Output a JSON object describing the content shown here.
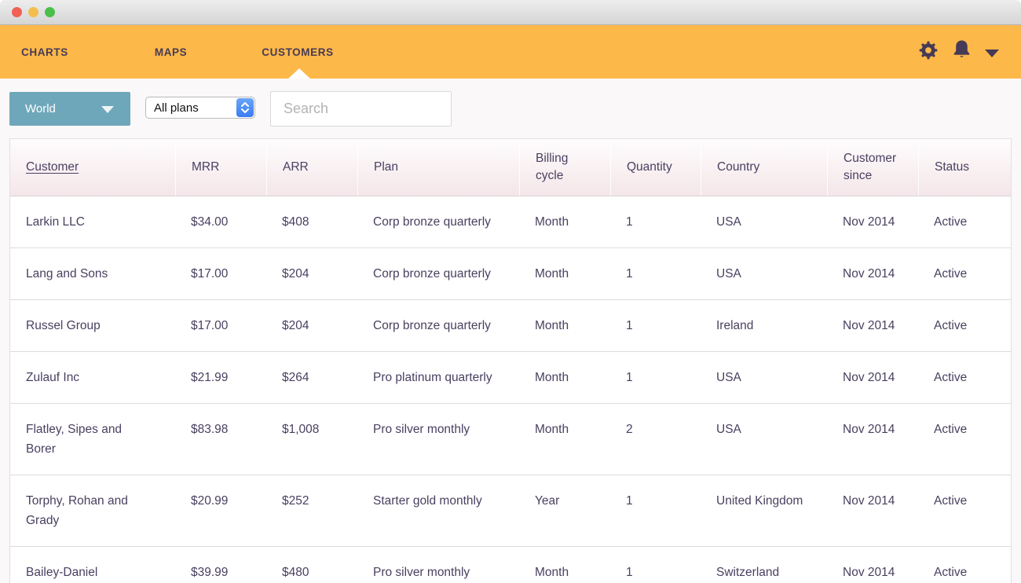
{
  "nav": {
    "tabs": [
      {
        "label": "CHARTS",
        "active": false
      },
      {
        "label": "MAPS",
        "active": false
      },
      {
        "label": "CUSTOMERS",
        "active": true
      }
    ]
  },
  "toolbar": {
    "region_dropdown": {
      "value": "World"
    },
    "plan_select": {
      "value": "All plans"
    },
    "search": {
      "placeholder": "Search"
    }
  },
  "table": {
    "columns": [
      {
        "key": "customer",
        "label": "Customer",
        "sorted": true
      },
      {
        "key": "mrr",
        "label": "MRR",
        "sorted": false
      },
      {
        "key": "arr",
        "label": "ARR",
        "sorted": false
      },
      {
        "key": "plan",
        "label": "Plan",
        "sorted": false
      },
      {
        "key": "billing_cycle",
        "label": "Billing cycle",
        "sorted": false
      },
      {
        "key": "quantity",
        "label": "Quantity",
        "sorted": false
      },
      {
        "key": "country",
        "label": "Country",
        "sorted": false
      },
      {
        "key": "customer_since",
        "label": "Customer since",
        "sorted": false
      },
      {
        "key": "status",
        "label": "Status",
        "sorted": false
      }
    ],
    "rows": [
      {
        "customer": "Larkin LLC",
        "mrr": "$34.00",
        "arr": "$408",
        "plan": "Corp bronze quarterly",
        "billing_cycle": "Month",
        "quantity": "1",
        "country": "USA",
        "customer_since": "Nov 2014",
        "status": "Active"
      },
      {
        "customer": "Lang and Sons",
        "mrr": "$17.00",
        "arr": "$204",
        "plan": "Corp bronze quarterly",
        "billing_cycle": "Month",
        "quantity": "1",
        "country": "USA",
        "customer_since": "Nov 2014",
        "status": "Active"
      },
      {
        "customer": "Russel Group",
        "mrr": "$17.00",
        "arr": "$204",
        "plan": "Corp bronze quarterly",
        "billing_cycle": "Month",
        "quantity": "1",
        "country": "Ireland",
        "customer_since": "Nov 2014",
        "status": "Active"
      },
      {
        "customer": "Zulauf Inc",
        "mrr": "$21.99",
        "arr": "$264",
        "plan": "Pro platinum quarterly",
        "billing_cycle": "Month",
        "quantity": "1",
        "country": "USA",
        "customer_since": "Nov 2014",
        "status": "Active"
      },
      {
        "customer": "Flatley, Sipes and Borer",
        "mrr": "$83.98",
        "arr": "$1,008",
        "plan": "Pro silver monthly",
        "billing_cycle": "Month",
        "quantity": "2",
        "country": "USA",
        "customer_since": "Nov 2014",
        "status": "Active"
      },
      {
        "customer": "Torphy, Rohan and Grady",
        "mrr": "$20.99",
        "arr": "$252",
        "plan": "Starter gold monthly",
        "billing_cycle": "Year",
        "quantity": "1",
        "country": "United Kingdom",
        "customer_since": "Nov 2014",
        "status": "Active"
      },
      {
        "customer": "Bailey-Daniel",
        "mrr": "$39.99",
        "arr": "$480",
        "plan": "Pro silver monthly",
        "billing_cycle": "Month",
        "quantity": "1",
        "country": "Switzerland",
        "customer_since": "Nov 2014",
        "status": "Active"
      }
    ]
  },
  "colors": {
    "brand_orange": "#FCB848",
    "nav_text": "#473A57",
    "teal_button": "#6FA7BA",
    "header_gradient_bottom": "#F4E6E9",
    "table_text": "#4A4060"
  }
}
